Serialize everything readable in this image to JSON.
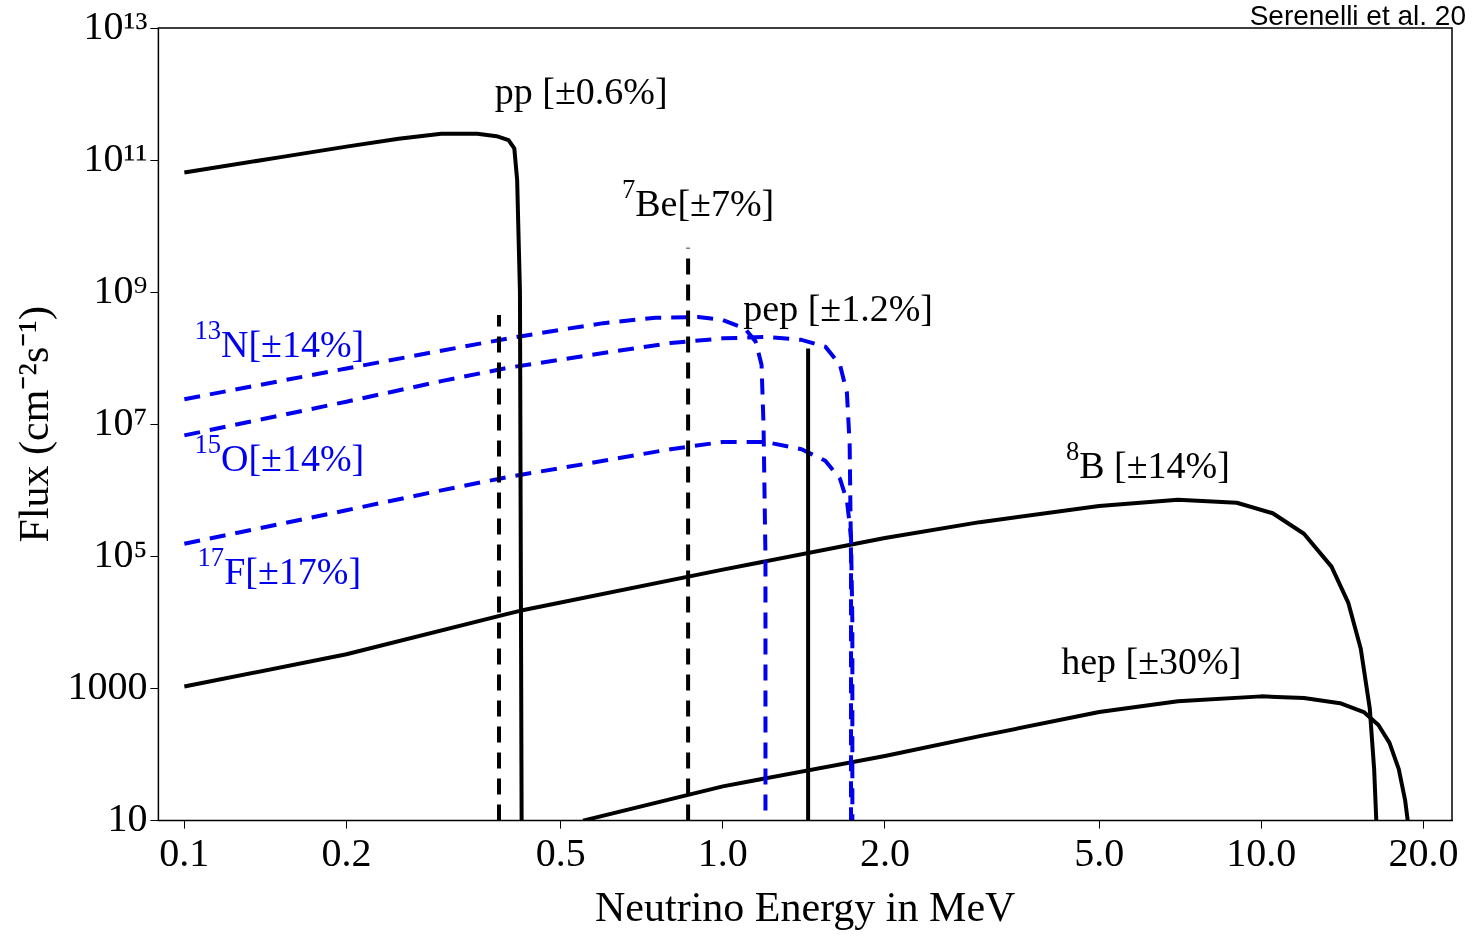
{
  "chart_data": {
    "type": "line",
    "xlabel": "Neutrino Energy in MeV",
    "ylabel": "Flux (cm⁻²s⁻¹)",
    "log": "xy",
    "grid": false,
    "legend": false,
    "xlim": [
      0.0895,
      22.6
    ],
    "xticks": [
      {
        "value": 0.1,
        "label": "0.1"
      },
      {
        "value": 0.2,
        "label": "0.2"
      },
      {
        "value": 0.5,
        "label": "0.5"
      },
      {
        "value": 1,
        "label": "1.0"
      },
      {
        "value": 2,
        "label": "2.0"
      },
      {
        "value": 5,
        "label": "5.0"
      },
      {
        "value": 10,
        "label": "10.0"
      },
      {
        "value": 20,
        "label": "20.0"
      }
    ],
    "ylim": [
      10,
      10000000000000.0
    ],
    "yticks": [
      10,
      1000,
      {
        "value": 100000,
        "label": "10⁵"
      },
      {
        "value": 10000000,
        "label": "10⁷"
      },
      {
        "value": 1000000000,
        "label": "10⁹"
      },
      {
        "value": 100000000000,
        "label": "10¹¹"
      },
      {
        "value": 10000000000000,
        "label": "10¹³"
      }
    ],
    "series": [
      {
        "name": "pp [±0.6%]",
        "color": "#000000",
        "line_style": "solid",
        "x": [
          0.1,
          0.15,
          0.2,
          0.25,
          0.3,
          0.35,
          0.38,
          0.4,
          0.41,
          0.415,
          0.42,
          0.423
        ],
        "values": [
          65000000000.0,
          110000000000.0,
          160000000000.0,
          210000000000.0,
          250000000000.0,
          250000000000.0,
          230000000000.0,
          200000000000.0,
          150000000000.0,
          50000000000.0,
          1000000000.0,
          10
        ]
      },
      {
        "name": "$^{7}$Be[±7%]",
        "color": "#000000",
        "line_style": "dashed",
        "x": [
          0.384,
          0.384,
          0.6,
          0.862,
          0.862
        ],
        "values": [
          10,
          450000000.0,
          null,
          10,
          4700000000.0
        ]
      },
      {
        "name": "pep [±1.2%]",
        "color": "#000000",
        "line_style": "solid",
        "x": [
          1.44,
          1.44
        ],
        "values": [
          10,
          140000000.0
        ]
      },
      {
        "name": "$^{13}$N[±14%]",
        "color": "#0000ee",
        "line_style": "dashed",
        "x": [
          0.1,
          0.2,
          0.3,
          0.4,
          0.5,
          0.6,
          0.75,
          0.9,
          1.0,
          1.1,
          1.15,
          1.18,
          1.19,
          1.2,
          1.2
        ],
        "values": [
          24000000.0,
          70000000.0,
          130000000.0,
          200000000.0,
          270000000.0,
          340000000.0,
          410000000.0,
          420000000.0,
          380000000.0,
          280000000.0,
          180000000.0,
          80000000.0,
          10000000.0,
          100000.0,
          10
        ]
      },
      {
        "name": "$^{15}$O[±14%]",
        "color": "#0000ee",
        "line_style": "dashed",
        "x": [
          0.1,
          0.2,
          0.3,
          0.4,
          0.6,
          0.8,
          1.0,
          1.2,
          1.4,
          1.55,
          1.65,
          1.7,
          1.72,
          1.73,
          1.73
        ],
        "values": [
          6800000.0,
          22000000.0,
          45000000.0,
          72000000.0,
          120000000.0,
          170000000.0,
          200000000.0,
          210000000.0,
          190000000.0,
          150000000.0,
          80000000.0,
          30000000.0,
          5000000.0,
          100000.0,
          10
        ]
      },
      {
        "name": "$^{17}$F[±17%]",
        "color": "#0000ee",
        "line_style": "dashed",
        "x": [
          0.1,
          0.2,
          0.3,
          0.4,
          0.6,
          0.8,
          1.0,
          1.2,
          1.4,
          1.55,
          1.65,
          1.7,
          1.73,
          1.74,
          1.74
        ],
        "values": [
          155000.0,
          500000.0,
          1000000.0,
          1600000.0,
          2800000.0,
          4200000.0,
          5400000.0,
          5400000.0,
          4200000.0,
          2800000.0,
          1500000.0,
          700000.0,
          200000.0,
          10000.0,
          10
        ]
      },
      {
        "name": "$^{8}$B [±14%]",
        "color": "#000000",
        "line_style": "solid",
        "x": [
          0.1,
          0.2,
          0.42,
          1.0,
          2.0,
          3.0,
          5.0,
          7.0,
          9.0,
          10.5,
          12,
          13.5,
          14.5,
          15.3,
          15.9,
          16.2,
          16.35
        ],
        "values": [
          1070,
          3300,
          15000.0,
          63000.0,
          190000.0,
          330000.0,
          580000.0,
          720000.0,
          650000.0,
          450000.0,
          220000.0,
          70000.0,
          20000.0,
          4000,
          500,
          60,
          10
        ]
      },
      {
        "name": "hep [±30%]",
        "color": "#000000",
        "line_style": "solid",
        "x": [
          0.55,
          1.0,
          2.0,
          3.0,
          5.0,
          7.0,
          10.0,
          12.0,
          14.0,
          15.5,
          16.5,
          17.3,
          18.0,
          18.5,
          18.7
        ],
        "values": [
          10,
          33,
          95,
          190,
          440,
          640,
          760,
          720,
          600,
          440,
          280,
          150,
          60,
          20,
          10
        ]
      }
    ],
    "annotations": [
      "Serenelli et al. 20"
    ]
  }
}
